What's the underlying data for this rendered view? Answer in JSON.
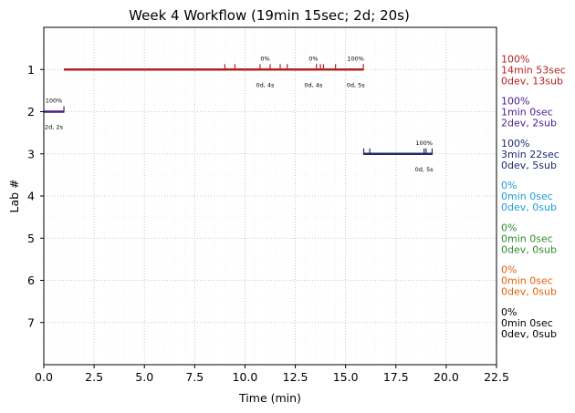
{
  "chart_data": {
    "type": "timeline",
    "title": "Week 4 Workflow (19min 15sec; 2d; 20s)",
    "xlabel": "Time (min)",
    "ylabel": "Lab #",
    "xlim": [
      0,
      22.5
    ],
    "ylim": [
      0,
      8
    ],
    "x_ticks": [
      "0.0",
      "2.5",
      "5.0",
      "7.5",
      "10.0",
      "12.5",
      "15.0",
      "17.5",
      "20.0",
      "22.5"
    ],
    "y_ticks": [
      "1",
      "2",
      "3",
      "4",
      "5",
      "6",
      "7"
    ],
    "grid": true,
    "labs": [
      {
        "lab": 1,
        "color": "#b22222",
        "start": 1.0,
        "end": 15.88,
        "marks": [
          9.0,
          9.5,
          10.75,
          11.25,
          11.75,
          12.1,
          13.55,
          13.75,
          13.9,
          14.5,
          15.88
        ],
        "annotations": [
          {
            "x": 11.0,
            "above": "0%",
            "below": "0d, 4s"
          },
          {
            "x": 13.4,
            "above": "0%",
            "below": "0d, 4s"
          },
          {
            "x": 15.5,
            "above": "100%",
            "below": "0d, 5s"
          }
        ],
        "summary": [
          "100%",
          "14min 53sec",
          "0dev, 13sub"
        ]
      },
      {
        "lab": 2,
        "color": "#4b1c8c",
        "start": 0.0,
        "end": 1.0,
        "marks": [
          1.0
        ],
        "annotations": [
          {
            "x": 0.5,
            "above": "100%",
            "below": "2d, 2s"
          }
        ],
        "summary": [
          "100%",
          "1min 0sec",
          "2dev, 2sub"
        ]
      },
      {
        "lab": 3,
        "color": "#1f2a6e",
        "start": 15.9,
        "end": 19.3,
        "marks": [
          15.9,
          16.2,
          18.9,
          19.0,
          19.3
        ],
        "annotations": [
          {
            "x": 18.9,
            "above": "100%",
            "below": "0d, 5s"
          }
        ],
        "summary": [
          "100%",
          "3min 22sec",
          "0dev, 5sub"
        ]
      },
      {
        "lab": 4,
        "color": "#1f9cd8",
        "summary": [
          "0%",
          "0min 0sec",
          "0dev, 0sub"
        ]
      },
      {
        "lab": 5,
        "color": "#2e8b2e",
        "summary": [
          "0%",
          "0min 0sec",
          "0dev, 0sub"
        ]
      },
      {
        "lab": 6,
        "color": "#e0620a",
        "summary": [
          "0%",
          "0min 0sec",
          "0dev, 0sub"
        ]
      },
      {
        "lab": 7,
        "color": "#000000",
        "summary": [
          "0%",
          "0min 0sec",
          "0dev, 0sub"
        ]
      }
    ]
  }
}
